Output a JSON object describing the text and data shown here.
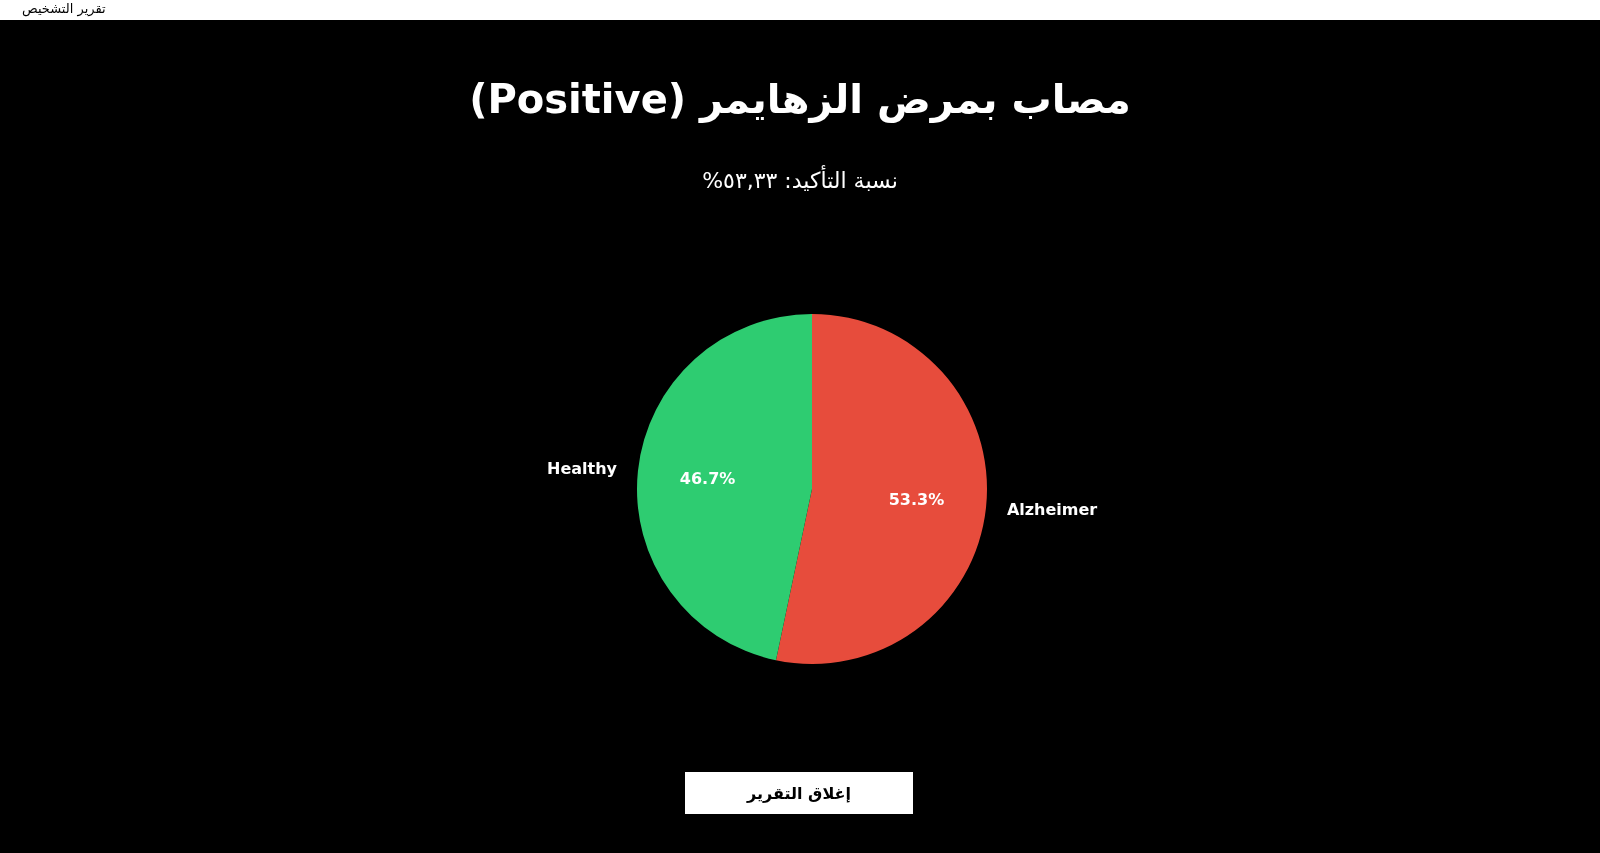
{
  "chart_data": {
    "type": "pie",
    "title": "مصاب بمرض الزهايمر (Positive)",
    "subtitle": "نسبة التأكيد: ٥٣,٣٣%",
    "categories": [
      "Alzheimer",
      "Healthy"
    ],
    "values": [
      53.3,
      46.7
    ],
    "colors": [
      "#e74c3c",
      "#2ecc71"
    ],
    "value_labels": [
      "53.3%",
      "46.7%"
    ],
    "annotations": [
      "تقرير التشخيص",
      "إغلاق التقرير"
    ],
    "legend": false
  }
}
